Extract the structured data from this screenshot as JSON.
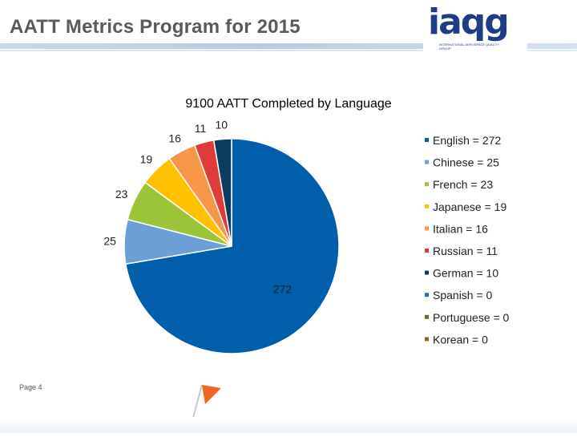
{
  "slide": {
    "title": "AATT Metrics Program for 2015",
    "page_label": "Page 4"
  },
  "logo": {
    "mark": "iaqg",
    "subtitle": "INTERNATIONAL AEROSPACE QUALITY GROUP"
  },
  "colors": {
    "title": "#5a5a5a",
    "english": "#005eab",
    "chinese": "#6b9fd6",
    "french": "#9cc439",
    "japanese": "#ffc000",
    "italian": "#f79646",
    "russian": "#e03a3a",
    "german": "#0b3c5d",
    "spanish": "#2e6eb5",
    "portuguese": "#5a7a1e",
    "korean": "#8a6a1c",
    "flag": "#f26522"
  },
  "chart_data": {
    "type": "pie",
    "title": "9100  AATT Completed by Language",
    "series": [
      {
        "name": "English",
        "legend": "English = 272",
        "value": 272,
        "label": "272",
        "color": "#005eab"
      },
      {
        "name": "Chinese",
        "legend": "Chinese = 25",
        "value": 25,
        "label": "25",
        "color": "#6b9fd6"
      },
      {
        "name": "French",
        "legend": "French = 23",
        "value": 23,
        "label": "23",
        "color": "#9cc439"
      },
      {
        "name": "Japanese",
        "legend": "Japanese = 19",
        "value": 19,
        "label": "19",
        "color": "#ffc000"
      },
      {
        "name": "Italian",
        "legend": "Italian = 16",
        "value": 16,
        "label": "16",
        "color": "#f79646"
      },
      {
        "name": "Russian",
        "legend": "Russian = 11",
        "value": 11,
        "label": "11",
        "color": "#e03a3a"
      },
      {
        "name": "German",
        "legend": "German = 10",
        "value": 10,
        "label": "10",
        "color": "#0b3c5d"
      },
      {
        "name": "Spanish",
        "legend": "Spanish = 0",
        "value": 0,
        "label": "",
        "color": "#2e6eb5"
      },
      {
        "name": "Portuguese",
        "legend": "Portuguese = 0",
        "value": 0,
        "label": "",
        "color": "#5a7a1e"
      },
      {
        "name": "Korean",
        "legend": "Korean = 0",
        "value": 0,
        "label": "",
        "color": "#8a6a1c"
      }
    ],
    "legend_position": "right"
  }
}
